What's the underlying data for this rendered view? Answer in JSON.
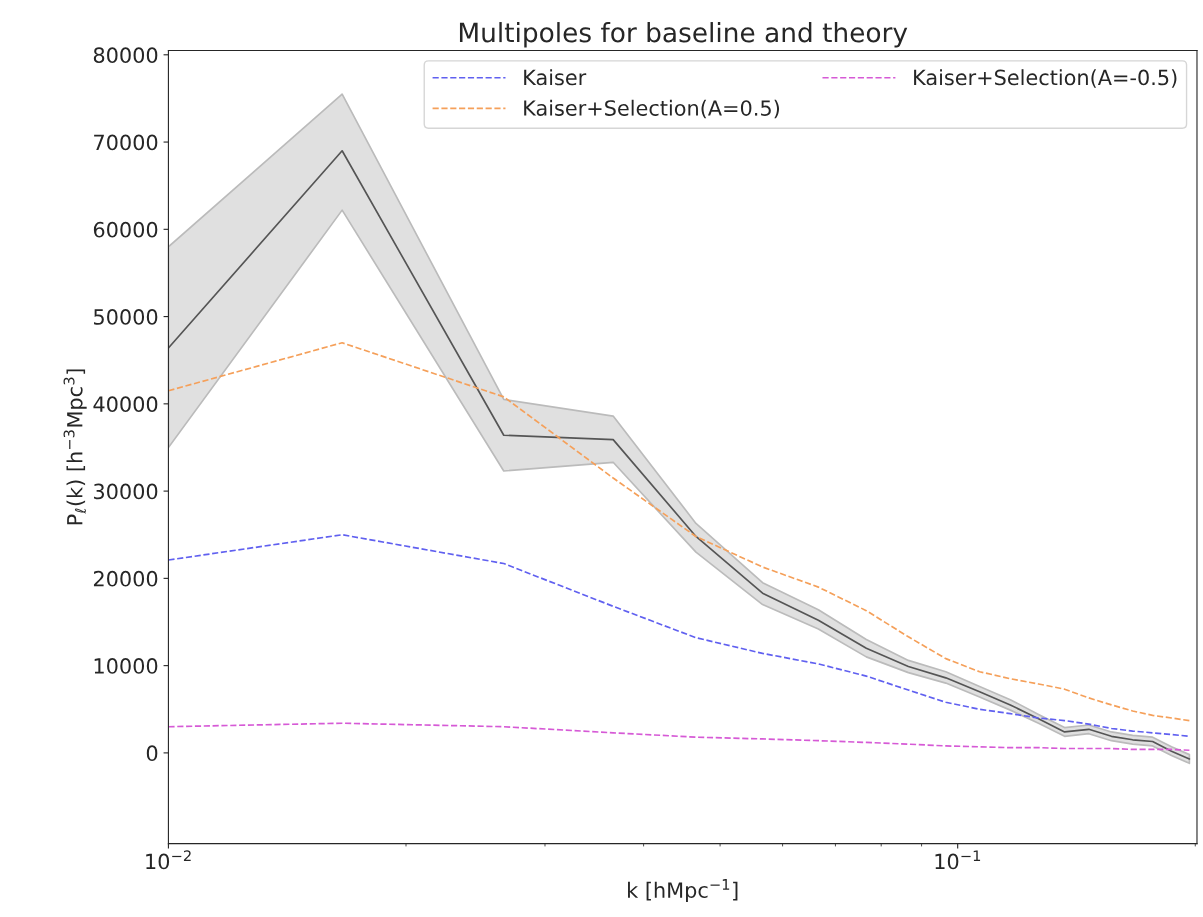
{
  "chart_data": {
    "type": "line",
    "title": "Multipoles for baseline and theory",
    "xlabel": "k [hMpc$^{−1}$]",
    "ylabel": "P$_{ℓ}$(k) [h$^{−3}$Mpc$^{3}$]",
    "log": "x",
    "xlim": [
      0.01,
      0.201
    ],
    "ylim": [
      -10400,
      80500
    ],
    "xticks": [
      {
        "value": 0.01,
        "label": "10$^{−2}$"
      },
      {
        "value": 0.1,
        "label": "10$^{−1}$"
      }
    ],
    "yticks": [
      0,
      10000,
      20000,
      30000,
      40000,
      50000,
      60000,
      70000,
      80000
    ],
    "grid": false,
    "legend": "top right",
    "x": [
      0.01,
      0.0166,
      0.0266,
      0.0366,
      0.0466,
      0.0566,
      0.0666,
      0.0766,
      0.0866,
      0.0966,
      0.1066,
      0.1166,
      0.1266,
      0.1366,
      0.1466,
      0.1566,
      0.1666,
      0.1766,
      0.1866,
      0.1966
    ],
    "series": [
      {
        "color": "#555555",
        "line_style": "solid",
        "values": [
          46400,
          69000,
          36400,
          35900,
          24800,
          18300,
          15200,
          12000,
          9900,
          8600,
          7000,
          5500,
          3900,
          2400,
          2700,
          1900,
          1500,
          1300,
          200,
          -700
        ],
        "lower": [
          35000,
          62200,
          32300,
          33300,
          23000,
          17000,
          14200,
          11000,
          9200,
          8000,
          6400,
          4900,
          3400,
          1900,
          2200,
          1400,
          1000,
          800,
          -300,
          -1200
        ],
        "upper": [
          58000,
          75500,
          40500,
          38600,
          26300,
          19500,
          16400,
          13000,
          10600,
          9300,
          7600,
          6100,
          4400,
          2900,
          3200,
          2400,
          2000,
          1800,
          700,
          -200
        ]
      },
      {
        "name": "Kaiser",
        "color": "#6060f0",
        "line_style": "dashed",
        "values": [
          22100,
          25000,
          21700,
          16800,
          13200,
          11400,
          10200,
          8800,
          7200,
          5800,
          5000,
          4500,
          4000,
          3700,
          3300,
          2800,
          2500,
          2300,
          2100,
          1900
        ]
      },
      {
        "name": "Kaiser+Selection(A=0.5)",
        "color": "#f5a05a",
        "line_style": "dashed",
        "values": [
          41500,
          47000,
          40800,
          31500,
          24800,
          21300,
          19000,
          16300,
          13300,
          10800,
          9300,
          8500,
          7900,
          7300,
          6300,
          5500,
          4800,
          4300,
          4000,
          3700
        ]
      },
      {
        "name": "Kaiser+Selection(A=-0.5)",
        "color": "#d65ad6",
        "line_style": "dashed",
        "values": [
          3000,
          3400,
          3000,
          2300,
          1800,
          1600,
          1400,
          1200,
          1000,
          800,
          700,
          600,
          600,
          500,
          500,
          500,
          400,
          400,
          400,
          300
        ]
      }
    ]
  }
}
